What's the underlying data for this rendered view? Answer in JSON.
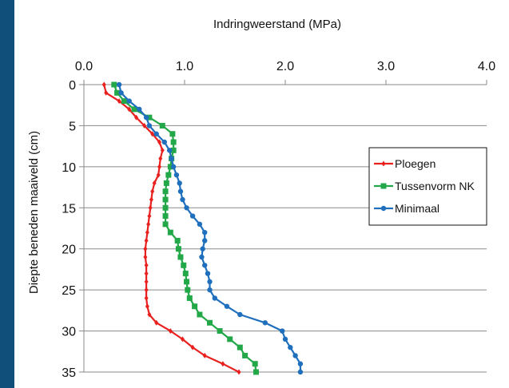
{
  "chart_data": {
    "type": "line",
    "title": "",
    "xlabel": "Indringweerstand (MPa)",
    "ylabel": "Diepte beneden maaiveld (cm)",
    "xlim": [
      0,
      4
    ],
    "ylim": [
      0,
      35
    ],
    "x_axis_position": "top",
    "y_axis_inverted": true,
    "grid": "horizontal",
    "legend_placement": "right",
    "x_ticks": [
      "0.0",
      "1.0",
      "2.0",
      "3.0",
      "4.0"
    ],
    "y_ticks": [
      "0",
      "5",
      "10",
      "15",
      "20",
      "25",
      "30",
      "35"
    ],
    "series": [
      {
        "name": "Ploegen",
        "color": "#e8211f",
        "marker": "diamond",
        "points": [
          [
            0.2,
            0
          ],
          [
            0.22,
            1
          ],
          [
            0.35,
            2
          ],
          [
            0.45,
            3
          ],
          [
            0.52,
            4
          ],
          [
            0.6,
            5
          ],
          [
            0.68,
            6
          ],
          [
            0.75,
            7
          ],
          [
            0.78,
            8
          ],
          [
            0.76,
            9
          ],
          [
            0.75,
            10
          ],
          [
            0.74,
            11
          ],
          [
            0.7,
            12
          ],
          [
            0.68,
            13
          ],
          [
            0.67,
            14
          ],
          [
            0.66,
            15
          ],
          [
            0.65,
            16
          ],
          [
            0.64,
            17
          ],
          [
            0.63,
            18
          ],
          [
            0.62,
            19
          ],
          [
            0.61,
            20
          ],
          [
            0.61,
            21
          ],
          [
            0.62,
            22
          ],
          [
            0.62,
            23
          ],
          [
            0.62,
            24
          ],
          [
            0.62,
            25
          ],
          [
            0.62,
            26
          ],
          [
            0.63,
            27
          ],
          [
            0.65,
            28
          ],
          [
            0.72,
            29
          ],
          [
            0.86,
            30
          ],
          [
            0.98,
            31
          ],
          [
            1.08,
            32
          ],
          [
            1.2,
            33
          ],
          [
            1.38,
            34
          ],
          [
            1.54,
            35
          ]
        ]
      },
      {
        "name": "Tussenvorm NK",
        "color": "#23a849",
        "marker": "square",
        "points": [
          [
            0.3,
            0
          ],
          [
            0.33,
            1
          ],
          [
            0.4,
            2
          ],
          [
            0.5,
            3
          ],
          [
            0.65,
            4
          ],
          [
            0.78,
            5
          ],
          [
            0.88,
            6
          ],
          [
            0.89,
            7
          ],
          [
            0.89,
            8
          ],
          [
            0.87,
            9
          ],
          [
            0.86,
            10
          ],
          [
            0.84,
            11
          ],
          [
            0.82,
            12
          ],
          [
            0.81,
            13
          ],
          [
            0.81,
            14
          ],
          [
            0.81,
            15
          ],
          [
            0.81,
            16
          ],
          [
            0.81,
            17
          ],
          [
            0.86,
            18
          ],
          [
            0.93,
            19
          ],
          [
            0.94,
            20
          ],
          [
            0.96,
            21
          ],
          [
            0.99,
            22
          ],
          [
            1.01,
            23
          ],
          [
            1.02,
            24
          ],
          [
            1.03,
            25
          ],
          [
            1.05,
            26
          ],
          [
            1.1,
            27
          ],
          [
            1.15,
            28
          ],
          [
            1.25,
            29
          ],
          [
            1.35,
            30
          ],
          [
            1.45,
            31
          ],
          [
            1.55,
            32
          ],
          [
            1.6,
            33
          ],
          [
            1.7,
            34
          ],
          [
            1.71,
            35
          ]
        ]
      },
      {
        "name": "Minimaal",
        "color": "#1f6fbd",
        "marker": "circle",
        "points": [
          [
            0.35,
            0
          ],
          [
            0.37,
            1
          ],
          [
            0.45,
            2
          ],
          [
            0.55,
            3
          ],
          [
            0.62,
            4
          ],
          [
            0.65,
            5
          ],
          [
            0.72,
            6
          ],
          [
            0.8,
            7
          ],
          [
            0.85,
            8
          ],
          [
            0.87,
            9
          ],
          [
            0.89,
            10
          ],
          [
            0.92,
            11
          ],
          [
            0.95,
            12
          ],
          [
            0.96,
            13
          ],
          [
            0.98,
            14
          ],
          [
            1.02,
            15
          ],
          [
            1.08,
            16
          ],
          [
            1.15,
            17
          ],
          [
            1.2,
            18
          ],
          [
            1.2,
            19
          ],
          [
            1.18,
            20
          ],
          [
            1.17,
            21
          ],
          [
            1.2,
            22
          ],
          [
            1.23,
            23
          ],
          [
            1.25,
            24
          ],
          [
            1.25,
            25
          ],
          [
            1.3,
            26
          ],
          [
            1.42,
            27
          ],
          [
            1.55,
            28
          ],
          [
            1.8,
            29
          ],
          [
            1.97,
            30
          ],
          [
            2.0,
            31
          ],
          [
            2.05,
            32
          ],
          [
            2.1,
            33
          ],
          [
            2.15,
            34
          ],
          [
            2.15,
            35
          ]
        ]
      }
    ]
  }
}
